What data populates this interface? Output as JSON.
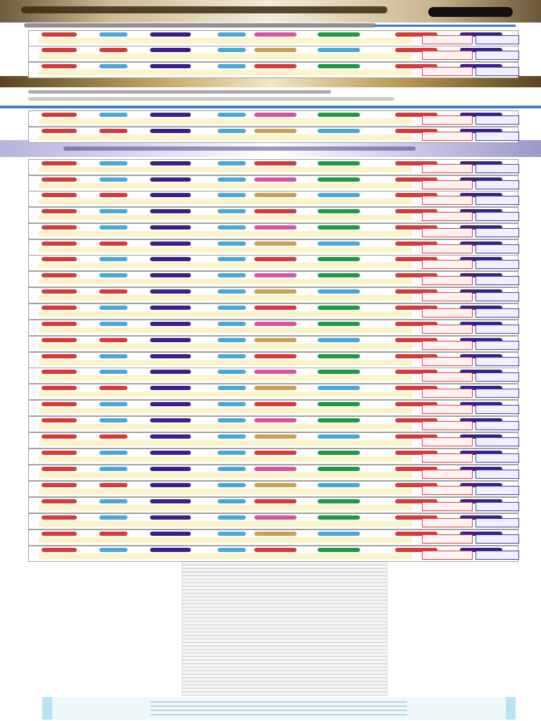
{
  "header": {
    "title": "",
    "subtitle": "",
    "action": ""
  },
  "rows": [
    {
      "top": 43
    },
    {
      "top": 65
    },
    {
      "top": 88
    },
    {
      "top": 157
    },
    {
      "top": 180
    },
    {
      "top": 226
    },
    {
      "top": 249
    },
    {
      "top": 271
    },
    {
      "top": 294
    },
    {
      "top": 317
    },
    {
      "top": 340
    },
    {
      "top": 362
    },
    {
      "top": 385
    },
    {
      "top": 408
    },
    {
      "top": 431
    },
    {
      "top": 454
    },
    {
      "top": 477
    },
    {
      "top": 500
    },
    {
      "top": 522
    },
    {
      "top": 545
    },
    {
      "top": 568
    },
    {
      "top": 591
    },
    {
      "top": 614
    },
    {
      "top": 637
    },
    {
      "top": 660
    },
    {
      "top": 683
    },
    {
      "top": 706
    },
    {
      "top": 729
    },
    {
      "top": 752
    },
    {
      "top": 775
    }
  ],
  "footer": {
    "text": ""
  },
  "info": {
    "text": ""
  }
}
